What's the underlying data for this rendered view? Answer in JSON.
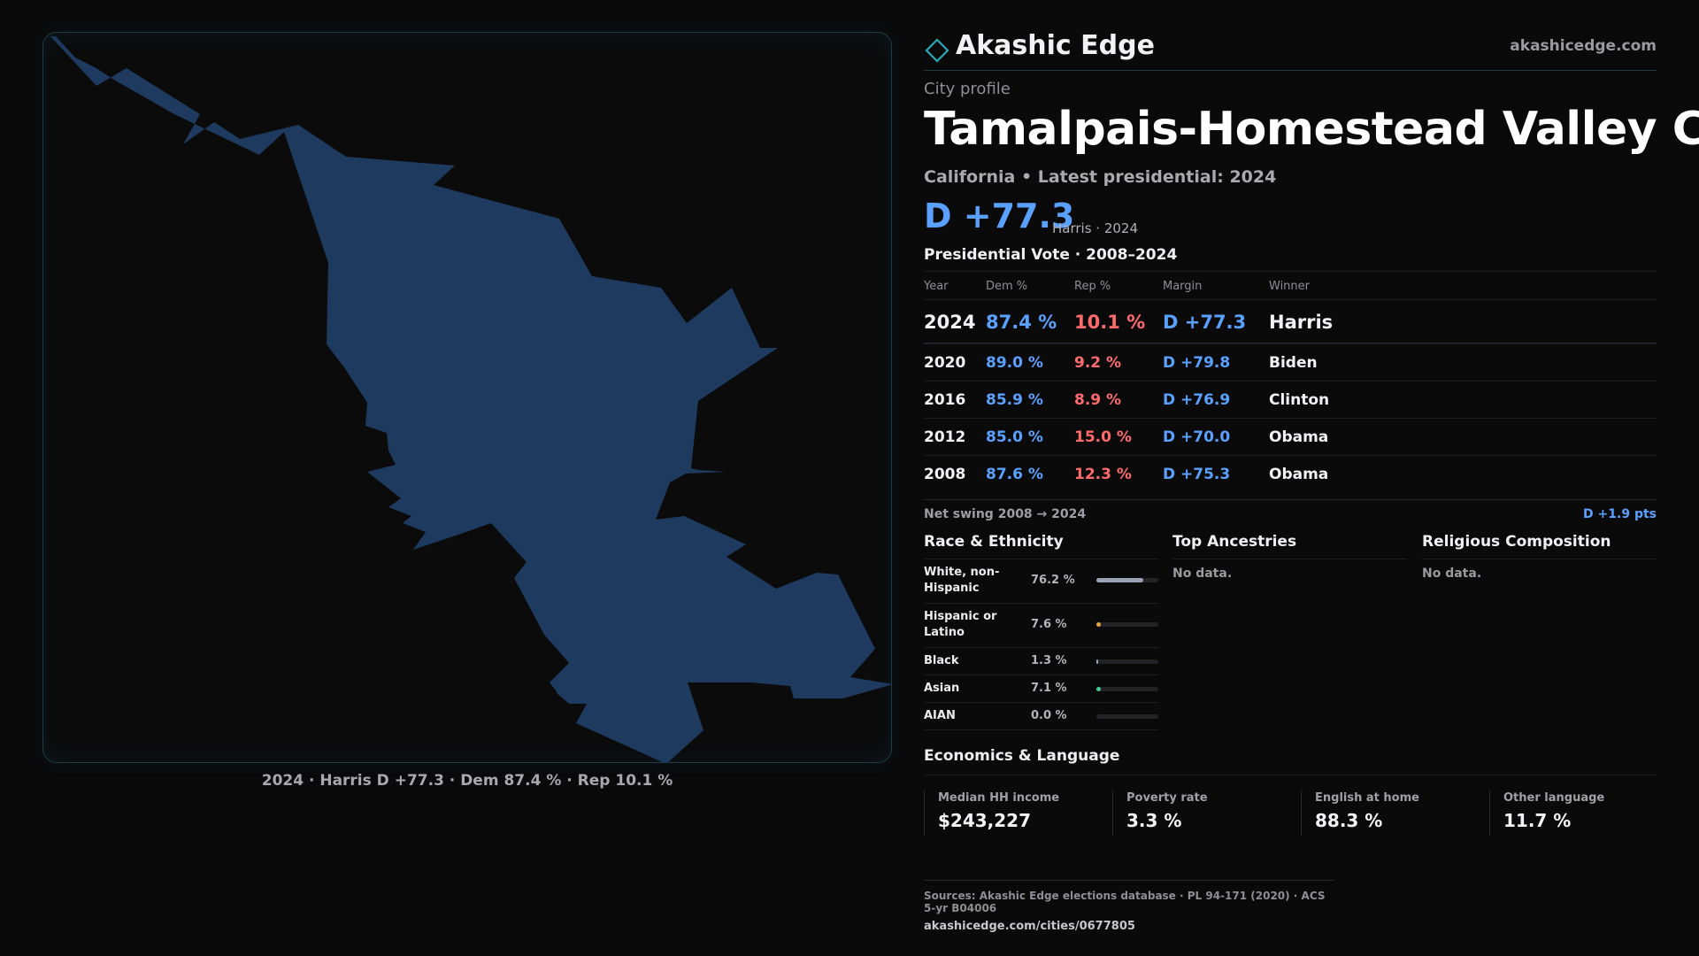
{
  "brand": {
    "name": "Akashic Edge",
    "url": "akashicedge.com"
  },
  "profile": {
    "eyebrow": "City profile",
    "title": "Tamalpais-Homestead Valley CDP",
    "subtitle": "California • Latest presidential: 2024",
    "margin": "D +77.3",
    "margin_meta": "Harris · 2024"
  },
  "map": {
    "caption": "2024 · Harris D +77.3 · Dem 87.4 % · Rep 10.1 %",
    "fill_color": "#1e3a5f"
  },
  "vote": {
    "title": "Presidential Vote · 2008–2024",
    "headers": {
      "year": "Year",
      "dem": "Dem %",
      "rep": "Rep %",
      "margin": "Margin",
      "winner": "Winner"
    },
    "rows": [
      {
        "year": "2024",
        "dem": "87.4 %",
        "rep": "10.1 %",
        "margin": "D +77.3",
        "winner": "Harris"
      },
      {
        "year": "2020",
        "dem": "89.0 %",
        "rep": "9.2 %",
        "margin": "D +79.8",
        "winner": "Biden"
      },
      {
        "year": "2016",
        "dem": "85.9 %",
        "rep": "8.9 %",
        "margin": "D +76.9",
        "winner": "Clinton"
      },
      {
        "year": "2012",
        "dem": "85.0 %",
        "rep": "15.0 %",
        "margin": "D +70.0",
        "winner": "Obama"
      },
      {
        "year": "2008",
        "dem": "87.6 %",
        "rep": "12.3 %",
        "margin": "D +75.3",
        "winner": "Obama"
      }
    ],
    "swing_label": "Net swing 2008 → 2024",
    "swing_value": "D +1.9 pts"
  },
  "race": {
    "title": "Race & Ethnicity",
    "rows": [
      {
        "label": "White, non-Hispanic",
        "pct": "76.2 %",
        "fraction": 0.762,
        "color": "#9aa3b5"
      },
      {
        "label": "Hispanic or Latino",
        "pct": "7.6 %",
        "fraction": 0.076,
        "color": "#e8a33a"
      },
      {
        "label": "Black",
        "pct": "1.3 %",
        "fraction": 0.013,
        "color": "#9aa3b5"
      },
      {
        "label": "Asian",
        "pct": "7.1 %",
        "fraction": 0.071,
        "color": "#3ecf8e"
      },
      {
        "label": "AIAN",
        "pct": "0.0 %",
        "fraction": 0.0,
        "color": "#9aa3b5"
      }
    ]
  },
  "ancestries": {
    "title": "Top Ancestries",
    "empty": "No data."
  },
  "religion": {
    "title": "Religious Composition",
    "empty": "No data."
  },
  "economics": {
    "title": "Economics & Language",
    "cards": [
      {
        "label": "Median HH income",
        "value": "$243,227"
      },
      {
        "label": "Poverty rate",
        "value": "3.3 %"
      },
      {
        "label": "English at home",
        "value": "88.3 %"
      },
      {
        "label": "Other language",
        "value": "11.7 %"
      }
    ]
  },
  "sources": {
    "text": "Sources: Akashic Edge elections database · PL 94-171 (2020) · ACS 5-yr B04006",
    "url": "akashicedge.com/cities/0677805"
  }
}
